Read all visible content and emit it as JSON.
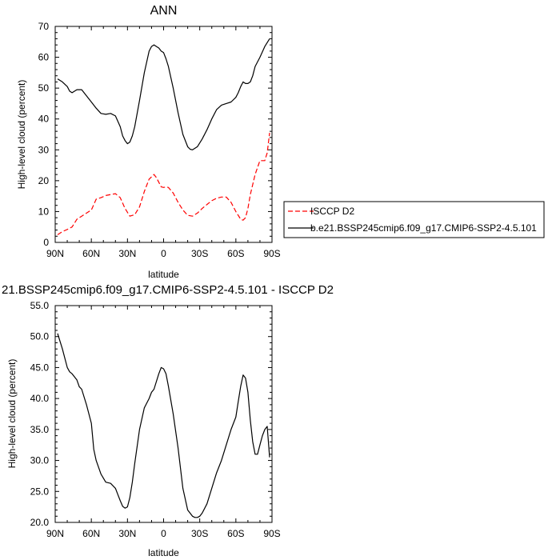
{
  "chart_data": [
    {
      "type": "line",
      "title": "ANN",
      "xlabel": "latitude",
      "ylabel": "High-level cloud (percent)",
      "xlim": [
        90,
        -90
      ],
      "ylim": [
        0,
        70
      ],
      "x_ticks": [
        90,
        60,
        30,
        0,
        -30,
        -60,
        -90
      ],
      "x_tick_labels": [
        "90N",
        "60N",
        "30N",
        "0",
        "30S",
        "60S",
        "90S"
      ],
      "y_ticks": [
        0,
        10,
        20,
        30,
        40,
        50,
        60,
        70
      ],
      "y_tick_labels": [
        "0",
        "10",
        "20",
        "30",
        "40",
        "50",
        "60",
        "70"
      ],
      "legend": {
        "placement": "outside-right",
        "entries": [
          "ISCCP D2",
          "b.e21.BSSP245cmip6.f09_g17.CMIP6-SSP2-4.5.101"
        ]
      },
      "series": [
        {
          "name": "ISCCP D2",
          "color": "#ff0000",
          "dash": "dashed",
          "x": [
            88.0,
            84.0,
            80.0,
            76.0,
            72.0,
            68.0,
            64.0,
            60.0,
            56.0,
            52.0,
            48.0,
            44.0,
            40.0,
            36.0,
            32.0,
            28.0,
            24.0,
            20.0,
            16.0,
            12.0,
            8.0,
            6.0,
            4.0,
            2.0,
            0.0,
            -2.0,
            -4.0,
            -8.0,
            -12.0,
            -16.0,
            -20.0,
            -24.0,
            -28.0,
            -32.0,
            -36.0,
            -40.0,
            -44.0,
            -48.0,
            -52.0,
            -56.0,
            -60.0,
            -64.0,
            -66.0,
            -68.0,
            -70.0,
            -72.0,
            -76.0,
            -80.0,
            -82.0,
            -84.0,
            -86.0,
            -88.0
          ],
          "y": [
            2.5,
            3.5,
            4.2,
            5.0,
            7.5,
            8.5,
            9.5,
            10.5,
            14.0,
            14.5,
            15.2,
            15.5,
            15.8,
            14.5,
            11.0,
            8.5,
            9.0,
            11.5,
            16.5,
            20.5,
            22.0,
            21.0,
            19.5,
            18.0,
            17.8,
            18.0,
            17.8,
            16.0,
            13.0,
            10.5,
            8.8,
            8.5,
            9.5,
            11.0,
            12.3,
            13.5,
            14.3,
            14.7,
            14.7,
            13.0,
            10.0,
            7.5,
            7.2,
            8.0,
            11.0,
            15.5,
            22.0,
            26.5,
            26.5,
            26.5,
            29.0,
            35.5
          ]
        },
        {
          "name": "b.e21.BSSP245cmip6.f09_g17.CMIP6-SSP2-4.5.101",
          "color": "#000000",
          "dash": "solid",
          "x": [
            88.0,
            84.0,
            80.0,
            78.0,
            76.0,
            72.0,
            68.0,
            64.0,
            60.0,
            56.0,
            52.0,
            48.0,
            44.0,
            40.0,
            36.0,
            34.0,
            32.0,
            30.0,
            28.0,
            26.0,
            24.0,
            20.0,
            16.0,
            12.0,
            10.0,
            8.0,
            6.0,
            4.0,
            2.0,
            0.0,
            -2.0,
            -4.0,
            -8.0,
            -12.0,
            -16.0,
            -20.0,
            -22.0,
            -24.0,
            -26.0,
            -28.0,
            -32.0,
            -36.0,
            -40.0,
            -44.0,
            -48.0,
            -52.0,
            -56.0,
            -60.0,
            -62.0,
            -64.0,
            -66.0,
            -68.0,
            -70.0,
            -72.0,
            -74.0,
            -76.0,
            -80.0,
            -84.0,
            -88.0
          ],
          "y": [
            53.0,
            52.0,
            50.5,
            49.0,
            48.5,
            49.5,
            49.5,
            47.5,
            45.5,
            43.5,
            41.8,
            41.5,
            41.8,
            41.0,
            37.5,
            34.5,
            33.0,
            32.0,
            32.5,
            34.5,
            37.5,
            46.0,
            55.0,
            62.0,
            63.5,
            64.0,
            63.5,
            63.0,
            62.0,
            61.5,
            59.5,
            57.0,
            50.0,
            42.0,
            35.0,
            31.0,
            30.2,
            30.0,
            30.5,
            31.0,
            33.5,
            36.5,
            40.0,
            43.0,
            44.5,
            45.0,
            45.5,
            47.0,
            48.5,
            50.5,
            52.0,
            51.5,
            51.5,
            52.0,
            54.0,
            57.0,
            60.0,
            63.5,
            66.0
          ]
        }
      ]
    },
    {
      "type": "line",
      "title": "21.BSSP245cmip6.f09_g17.CMIP6-SSP2-4.5.101 - ISCCP D2",
      "xlabel": "latitude",
      "ylabel": "High-level cloud (percent)",
      "xlim": [
        90,
        -90
      ],
      "ylim": [
        20,
        55
      ],
      "x_ticks": [
        90,
        60,
        30,
        0,
        -30,
        -60,
        -90
      ],
      "x_tick_labels": [
        "90N",
        "60N",
        "30N",
        "0",
        "30S",
        "60S",
        "90S"
      ],
      "y_ticks": [
        20,
        25,
        30,
        35,
        40,
        45,
        50,
        55
      ],
      "y_tick_labels": [
        "20.0",
        "25.0",
        "30.0",
        "35.0",
        "40.0",
        "45.0",
        "50.0",
        "55.0"
      ],
      "series": [
        {
          "color": "#000000",
          "dash": "solid",
          "x": [
            88.0,
            84.0,
            80.0,
            78.0,
            76.0,
            72.0,
            70.0,
            68.0,
            64.0,
            60.0,
            58.0,
            56.0,
            52.0,
            48.0,
            44.0,
            40.0,
            38.0,
            36.0,
            34.0,
            32.0,
            30.0,
            28.0,
            26.0,
            24.0,
            20.0,
            16.0,
            12.0,
            10.0,
            8.0,
            4.0,
            2.0,
            0.0,
            -2.0,
            -4.0,
            -8.0,
            -12.0,
            -16.0,
            -20.0,
            -24.0,
            -26.0,
            -28.0,
            -30.0,
            -32.0,
            -36.0,
            -40.0,
            -44.0,
            -48.0,
            -52.0,
            -56.0,
            -60.0,
            -62.0,
            -64.0,
            -66.0,
            -68.0,
            -70.0,
            -72.0,
            -74.0,
            -76.0,
            -78.0,
            -80.0,
            -82.0,
            -84.0,
            -86.0,
            -88.0
          ],
          "y": [
            50.5,
            48.0,
            45.0,
            44.3,
            44.0,
            43.0,
            41.9,
            41.5,
            39.0,
            36.0,
            31.8,
            30.0,
            27.8,
            26.5,
            26.3,
            25.5,
            24.5,
            23.5,
            22.6,
            22.3,
            22.5,
            24.0,
            26.5,
            29.5,
            35.0,
            38.5,
            40.0,
            41.0,
            41.5,
            44.0,
            45.0,
            44.8,
            44.0,
            42.0,
            37.5,
            32.0,
            25.5,
            22.0,
            21.0,
            20.8,
            20.8,
            21.0,
            21.5,
            23.0,
            25.5,
            28.0,
            30.0,
            32.5,
            35.0,
            37.0,
            39.5,
            42.0,
            43.8,
            43.3,
            41.0,
            36.5,
            33.0,
            31.0,
            31.0,
            32.5,
            34.0,
            35.0,
            35.5,
            30.5
          ]
        }
      ]
    }
  ]
}
